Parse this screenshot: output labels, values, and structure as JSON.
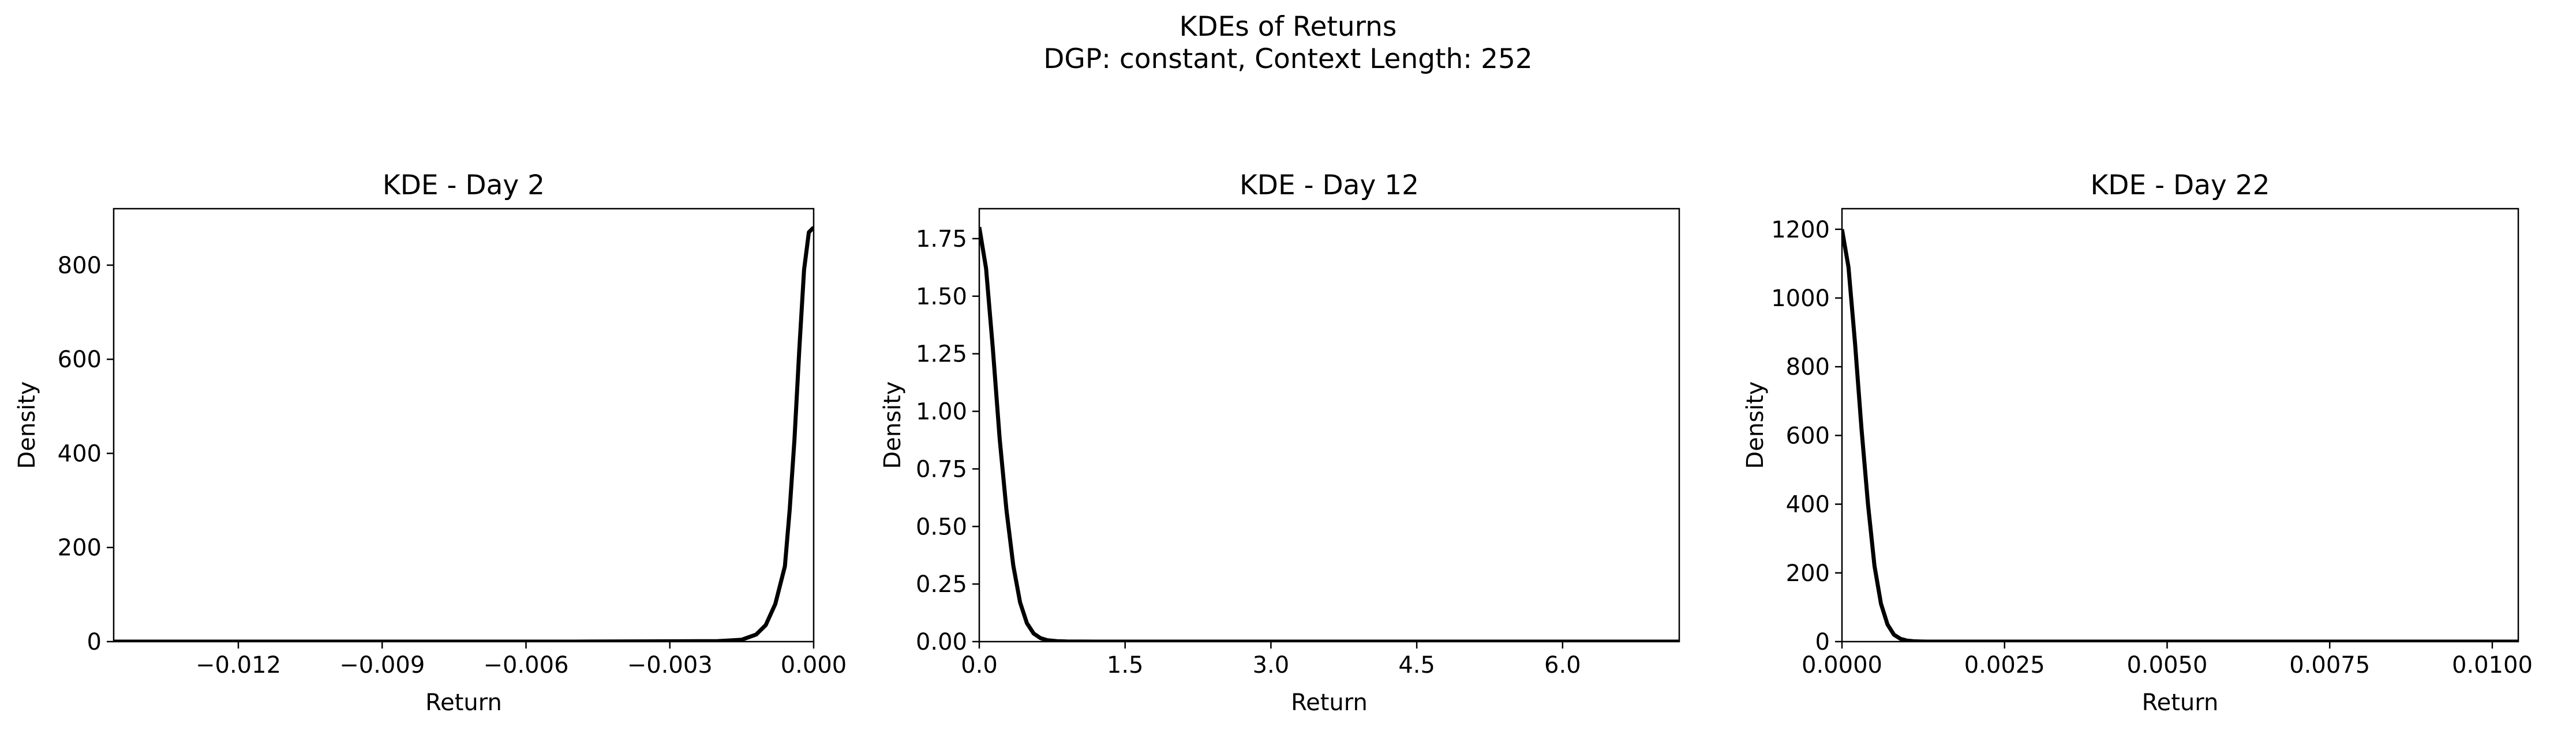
{
  "figure": {
    "title_line1": "KDEs of Returns",
    "title_line2": "DGP: constant, Context Length: 252"
  },
  "chart_data": [
    {
      "type": "line",
      "title": "KDE - Day 2",
      "xlabel": "Return",
      "ylabel": "Density",
      "xlim": [
        -0.0146,
        0.0
      ],
      "ylim": [
        0,
        920
      ],
      "xticks": [
        -0.012,
        -0.009,
        -0.006,
        -0.003,
        0.0
      ],
      "xtick_labels": [
        "−0.012",
        "−0.009",
        "−0.006",
        "−0.003",
        "0.000"
      ],
      "yticks": [
        0,
        200,
        400,
        600,
        800
      ],
      "ytick_labels": [
        "0",
        "200",
        "400",
        "600",
        "800"
      ],
      "line_color": "#000000",
      "series": [
        {
          "x": [
            -0.0146,
            -0.005,
            -0.002,
            -0.0015,
            -0.0012,
            -0.001,
            -0.0008,
            -0.0006,
            -0.0005,
            -0.0004,
            -0.0003,
            -0.0002,
            -0.0001,
            0.0
          ],
          "y": [
            0,
            0,
            1,
            4,
            15,
            35,
            80,
            160,
            280,
            430,
            620,
            790,
            870,
            880
          ]
        }
      ]
    },
    {
      "type": "line",
      "title": "KDE - Day 12",
      "xlabel": "Return",
      "ylabel": "Density",
      "xlim": [
        0.0,
        7.2
      ],
      "ylim": [
        0,
        1.88
      ],
      "xticks": [
        0.0,
        1.5,
        3.0,
        4.5,
        6.0
      ],
      "xtick_labels": [
        "0.0",
        "1.5",
        "3.0",
        "4.5",
        "6.0"
      ],
      "yticks": [
        0.0,
        0.25,
        0.5,
        0.75,
        1.0,
        1.25,
        1.5,
        1.75
      ],
      "ytick_labels": [
        "0.00",
        "0.25",
        "0.50",
        "0.75",
        "1.00",
        "1.25",
        "1.50",
        "1.75"
      ],
      "line_color": "#000000",
      "series": [
        {
          "x": [
            0.0,
            0.07,
            0.14,
            0.21,
            0.28,
            0.35,
            0.42,
            0.49,
            0.56,
            0.63,
            0.7,
            0.8,
            0.9,
            1.2,
            7.2
          ],
          "y": [
            1.8,
            1.62,
            1.27,
            0.88,
            0.57,
            0.33,
            0.17,
            0.08,
            0.035,
            0.015,
            0.006,
            0.002,
            0.0005,
            0.0,
            0.0
          ]
        }
      ]
    },
    {
      "type": "line",
      "title": "KDE - Day 22",
      "xlabel": "Return",
      "ylabel": "Density",
      "xlim": [
        0.0,
        0.0104
      ],
      "ylim": [
        0,
        1260
      ],
      "xticks": [
        0.0,
        0.0025,
        0.005,
        0.0075,
        0.01
      ],
      "xtick_labels": [
        "0.0000",
        "0.0025",
        "0.0050",
        "0.0075",
        "0.0100"
      ],
      "yticks": [
        0,
        200,
        400,
        600,
        800,
        1000,
        1200
      ],
      "ytick_labels": [
        "0",
        "200",
        "400",
        "600",
        "800",
        "1000",
        "1200"
      ],
      "line_color": "#000000",
      "series": [
        {
          "x": [
            0.0,
            0.0001,
            0.0002,
            0.0003,
            0.0004,
            0.0005,
            0.0006,
            0.0007,
            0.0008,
            0.0009,
            0.001,
            0.0011,
            0.0012,
            0.0013,
            0.002,
            0.0104
          ],
          "y": [
            1200,
            1090,
            870,
            620,
            400,
            220,
            110,
            50,
            20,
            8,
            3,
            1,
            0.4,
            0.1,
            0,
            0
          ]
        }
      ]
    }
  ]
}
